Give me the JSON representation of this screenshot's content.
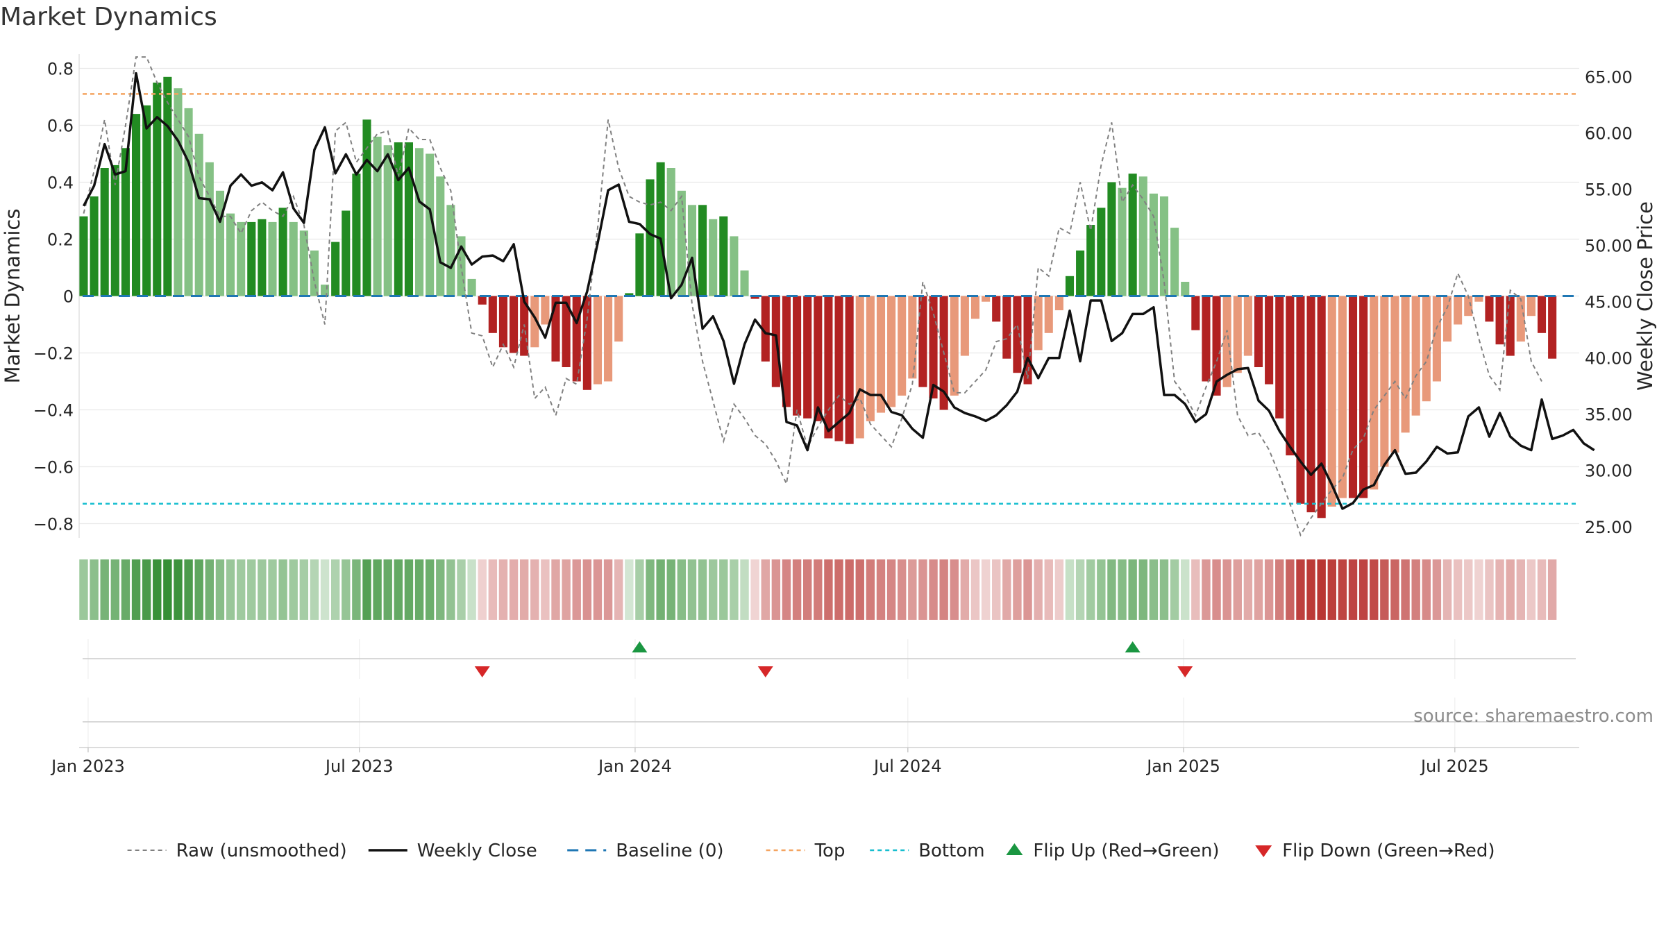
{
  "chart_data": {
    "title": "Market Dynamics",
    "type": "bar",
    "ylabel_left": "Market Dynamics",
    "ylabel_right": "Weekly Close Price",
    "ylim_left": [
      -0.85,
      0.85
    ],
    "ylim_right": [
      24.0,
      67.0
    ],
    "yticks_left": [
      {
        "v": 0.8,
        "label": "0.8"
      },
      {
        "v": 0.6,
        "label": "0.6"
      },
      {
        "v": 0.4,
        "label": "0.4"
      },
      {
        "v": 0.2,
        "label": "0.2"
      },
      {
        "v": 0.0,
        "label": "0"
      },
      {
        "v": -0.2,
        "label": "−0.2"
      },
      {
        "v": -0.4,
        "label": "−0.4"
      },
      {
        "v": -0.6,
        "label": "−0.6"
      },
      {
        "v": -0.8,
        "label": "−0.8"
      }
    ],
    "yticks_right": [
      {
        "v": 65,
        "label": "65.00"
      },
      {
        "v": 60,
        "label": "60.00"
      },
      {
        "v": 55,
        "label": "55.00"
      },
      {
        "v": 50,
        "label": "50.00"
      },
      {
        "v": 45,
        "label": "45.00"
      },
      {
        "v": 40,
        "label": "40.00"
      },
      {
        "v": 35,
        "label": "35.00"
      },
      {
        "v": 30,
        "label": "30.00"
      },
      {
        "v": 25,
        "label": "25.00"
      }
    ],
    "x_start": "2022-12-26",
    "x_end": "2025-09-22",
    "xticks": [
      {
        "date": "2023-01-01",
        "label": "Jan 2023"
      },
      {
        "date": "2023-07-01",
        "label": "Jul 2023"
      },
      {
        "date": "2024-01-01",
        "label": "Jan 2024"
      },
      {
        "date": "2024-07-01",
        "label": "Jul 2024"
      },
      {
        "date": "2025-01-01",
        "label": "Jan 2025"
      },
      {
        "date": "2025-07-01",
        "label": "Jul 2025"
      }
    ],
    "top_level": 0.71,
    "bottom_level": -0.73,
    "baseline": 0,
    "series": [
      {
        "name": "Raw (unsmoothed)",
        "values": [
          0.29,
          0.44,
          0.62,
          0.39,
          0.6,
          0.84,
          0.84,
          0.75,
          0.68,
          0.62,
          0.56,
          0.42,
          0.35,
          0.28,
          0.28,
          0.22,
          0.3,
          0.33,
          0.3,
          0.28,
          0.35,
          0.25,
          0.05,
          -0.1,
          0.58,
          0.61,
          0.47,
          0.52,
          0.57,
          0.58,
          0.42,
          0.59,
          0.55,
          0.55,
          0.45,
          0.37,
          0.1,
          -0.13,
          -0.14,
          -0.25,
          -0.17,
          -0.25,
          -0.1,
          -0.36,
          -0.32,
          -0.42,
          -0.29,
          -0.31,
          -0.08,
          0.24,
          0.62,
          0.45,
          0.35,
          0.33,
          0.32,
          0.33,
          0.3,
          0.35,
          -0.03,
          -0.23,
          -0.37,
          -0.51,
          -0.38,
          -0.43,
          -0.49,
          -0.52,
          -0.58,
          -0.66,
          -0.4,
          -0.53,
          -0.46,
          -0.4,
          -0.35,
          -0.38,
          -0.36,
          -0.45,
          -0.49,
          -0.53,
          -0.43,
          -0.31,
          0.05,
          -0.06,
          -0.2,
          -0.34,
          -0.34,
          -0.3,
          -0.26,
          -0.16,
          -0.15,
          -0.1,
          -0.29,
          0.1,
          0.07,
          0.24,
          0.22,
          0.4,
          0.23,
          0.46,
          0.61,
          0.33,
          0.39,
          0.34,
          0.28,
          0.05,
          -0.3,
          -0.35,
          -0.42,
          -0.32,
          -0.23,
          -0.12,
          -0.42,
          -0.49,
          -0.48,
          -0.54,
          -0.63,
          -0.73,
          -0.84,
          -0.78,
          -0.73,
          -0.68,
          -0.64,
          -0.54,
          -0.5,
          -0.4,
          -0.35,
          -0.3,
          -0.36,
          -0.28,
          -0.23,
          -0.11,
          -0.04,
          0.08,
          0.0,
          -0.15,
          -0.28,
          -0.33,
          0.02,
          -0.01,
          -0.23,
          -0.3
        ]
      },
      {
        "name": "Weekly Close",
        "values": [
          53.5,
          55.3,
          59.0,
          56.3,
          56.6,
          65.3,
          60.4,
          61.4,
          60.6,
          59.3,
          57.4,
          54.2,
          54.1,
          52.1,
          55.3,
          56.3,
          55.3,
          55.6,
          54.9,
          56.5,
          53.3,
          52.0,
          58.5,
          60.5,
          56.4,
          58.1,
          56.3,
          57.6,
          56.6,
          58.1,
          55.8,
          56.9,
          53.9,
          53.2,
          48.5,
          48.0,
          49.9,
          48.3,
          49.0,
          49.1,
          48.6,
          50.1,
          45.0,
          43.6,
          41.8,
          44.9,
          44.9,
          43.1,
          45.9,
          50.2,
          54.9,
          55.4,
          52.1,
          51.9,
          51.0,
          50.6,
          45.3,
          46.5,
          48.9,
          42.6,
          43.7,
          41.5,
          37.7,
          41.2,
          43.4,
          42.2,
          42.0,
          34.3,
          34.0,
          31.8,
          35.6,
          33.5,
          34.3,
          35.1,
          37.2,
          36.7,
          36.7,
          35.2,
          34.9,
          33.7,
          32.9,
          37.6,
          37.0,
          35.6,
          35.1,
          34.8,
          34.4,
          34.9,
          35.8,
          37.0,
          40.0,
          38.2,
          40.0,
          40.0,
          44.2,
          39.7,
          45.1,
          45.1,
          41.5,
          42.2,
          43.9,
          43.9,
          44.5,
          36.7,
          36.7,
          35.9,
          34.3,
          35.0,
          37.9,
          38.5,
          39.0,
          39.1,
          36.2,
          35.3,
          33.5,
          32.1,
          30.8,
          29.6,
          30.6,
          28.7,
          26.6,
          27.1,
          28.3,
          28.7,
          30.5,
          31.8,
          29.7,
          29.8,
          30.8,
          32.1,
          31.5,
          31.6,
          34.8,
          35.6,
          33.0,
          35.1,
          33.0,
          32.2,
          31.8,
          36.3,
          32.8,
          33.1,
          33.6,
          32.4,
          31.8
        ]
      },
      {
        "name": "Market Dynamics",
        "values": [
          0.28,
          0.35,
          0.45,
          0.46,
          0.52,
          0.64,
          0.67,
          0.75,
          0.77,
          0.73,
          0.66,
          0.57,
          0.47,
          0.37,
          0.29,
          0.26,
          0.26,
          0.27,
          0.26,
          0.31,
          0.26,
          0.23,
          0.16,
          0.04,
          0.19,
          0.3,
          0.43,
          0.62,
          0.56,
          0.53,
          0.54,
          0.54,
          0.52,
          0.5,
          0.42,
          0.32,
          0.21,
          0.06,
          -0.03,
          -0.13,
          -0.18,
          -0.2,
          -0.21,
          -0.18,
          -0.1,
          -0.23,
          -0.25,
          -0.3,
          -0.33,
          -0.31,
          -0.3,
          -0.16,
          0.01,
          0.22,
          0.41,
          0.47,
          0.45,
          0.37,
          0.32,
          0.32,
          0.27,
          0.28,
          0.21,
          0.09,
          -0.01,
          -0.23,
          -0.32,
          -0.39,
          -0.42,
          -0.43,
          -0.44,
          -0.5,
          -0.51,
          -0.52,
          -0.5,
          -0.44,
          -0.41,
          -0.39,
          -0.35,
          -0.29,
          -0.32,
          -0.36,
          -0.4,
          -0.35,
          -0.21,
          -0.08,
          -0.02,
          -0.09,
          -0.22,
          -0.27,
          -0.31,
          -0.19,
          -0.13,
          -0.05,
          0.07,
          0.16,
          0.25,
          0.31,
          0.4,
          0.38,
          0.43,
          0.42,
          0.36,
          0.35,
          0.24,
          0.05,
          -0.12,
          -0.3,
          -0.35,
          -0.32,
          -0.27,
          -0.21,
          -0.25,
          -0.31,
          -0.43,
          -0.56,
          -0.73,
          -0.76,
          -0.78,
          -0.74,
          -0.71,
          -0.71,
          -0.71,
          -0.68,
          -0.6,
          -0.55,
          -0.48,
          -0.42,
          -0.37,
          -0.3,
          -0.16,
          -0.1,
          -0.07,
          -0.02,
          -0.09,
          -0.17,
          -0.21,
          -0.16,
          -0.07,
          -0.13,
          -0.22
        ]
      }
    ],
    "bar_colors": {
      "strong_up": "#228b22",
      "weak_up": "#85c185",
      "strong_down": "#b22222",
      "weak_down": "#e8997a"
    },
    "line_colors": {
      "raw": "#808080",
      "close": "#111111",
      "baseline": "#1f77b4",
      "top": "#f4a460",
      "bottom": "#17becf"
    },
    "regime_colors": {
      "up": "#2e8b2e",
      "down": "#b8322f"
    },
    "flip_up_color": "#1a9641",
    "flip_down_color": "#d62728",
    "flip_up_weeks": [
      53,
      100
    ],
    "flip_down_weeks": [
      38,
      65,
      105
    ],
    "source_text": "source: sharemaestro.com",
    "legend": [
      {
        "label": "Raw (unsmoothed)",
        "kind": "line",
        "color": "#808080",
        "dash": "6,5",
        "width": 2
      },
      {
        "label": "Weekly Close",
        "kind": "line",
        "color": "#111111",
        "dash": "",
        "width": 3.5
      },
      {
        "label": "Baseline (0)",
        "kind": "line",
        "color": "#1f77b4",
        "dash": "16,10",
        "width": 3
      },
      {
        "label": "Top",
        "kind": "line",
        "color": "#f4a460",
        "dash": "6,5",
        "width": 2.5
      },
      {
        "label": "Bottom",
        "kind": "line",
        "color": "#17becf",
        "dash": "6,5",
        "width": 2.5
      },
      {
        "label": "Flip Up (Red→Green)",
        "kind": "up",
        "color": "#1a9641"
      },
      {
        "label": "Flip Down (Green→Red)",
        "kind": "down",
        "color": "#d62728"
      }
    ]
  }
}
